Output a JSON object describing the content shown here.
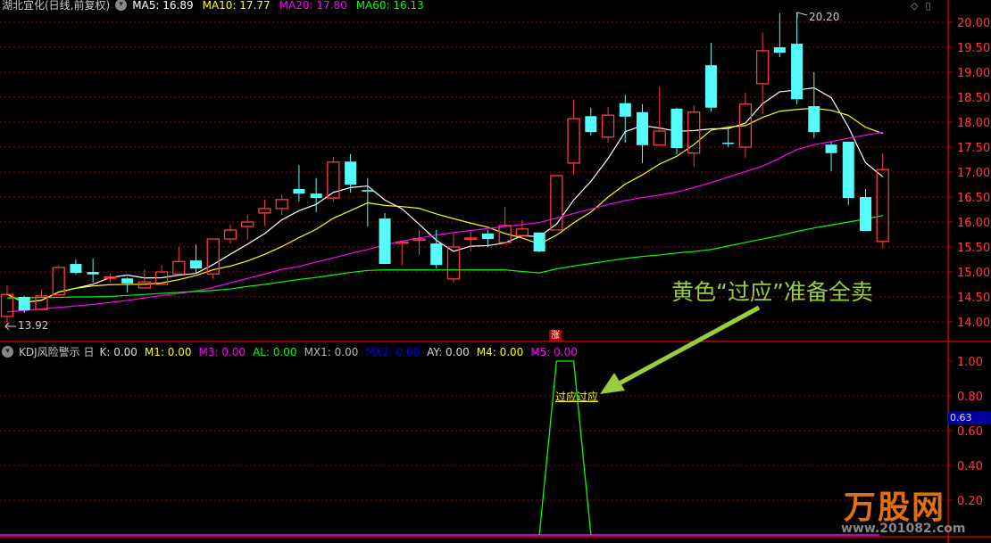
{
  "header": {
    "title": "湖北宜化(日线,前复权)",
    "dropdown_icon": "chevron-down-circle-icon",
    "ma": [
      {
        "label": "MA5: 16.89",
        "color": "#ffffff"
      },
      {
        "label": "MA10: 17.77",
        "color": "#ffff00"
      },
      {
        "label": "MA20: 17.80",
        "color": "#ff00ff"
      },
      {
        "label": "MA60: 16.13",
        "color": "#00ff00"
      }
    ]
  },
  "indicator_header": {
    "name": "KDJ风险警示 日",
    "values": [
      {
        "label": "K: 0.00",
        "color": "#dddddd"
      },
      {
        "label": "M1: 0.00",
        "color": "#ffff00"
      },
      {
        "label": "M3: 0.00",
        "color": "#ff00ff"
      },
      {
        "label": "AL: 0.00",
        "color": "#00ff00"
      },
      {
        "label": "MX1: 0.00",
        "color": "#bbbbbb"
      },
      {
        "label": "MX2: 0.00",
        "color": "#0000ff"
      },
      {
        "label": "AY: 0.00",
        "color": "#dddddd"
      },
      {
        "label": "M4: 0.00",
        "color": "#ffff00"
      },
      {
        "label": "M5: 0.00",
        "color": "#ff00ff"
      }
    ]
  },
  "annotation": "黄色“过应”准备全卖",
  "signal_label": "过应过应",
  "indicator_value_box": "0.63",
  "limit_up_badge": "涨",
  "logo": {
    "text": "万股网",
    "url": "www.201082.com"
  },
  "top_icons": [
    "diamond-icon",
    "panel-toggle-icon"
  ],
  "colors": {
    "up": "#ff3c3c",
    "down": "#54fcfc",
    "grid": "#a00000",
    "axis": "#c00000",
    "arrow": "#9acd3c"
  },
  "chart_data": [
    {
      "type": "candlestick",
      "title": "",
      "ylim": [
        13.8,
        20.4
      ],
      "yticks": [
        "20.00",
        "19.50",
        "19.00",
        "18.50",
        "18.00",
        "17.50",
        "17.00",
        "16.50",
        "16.00",
        "15.50",
        "15.00",
        "14.50",
        "14.00"
      ],
      "high_label": "20.20",
      "low_label": "13.92",
      "ohlc": [
        [
          14.11,
          14.73,
          13.92,
          14.55
        ],
        [
          14.5,
          14.52,
          14.18,
          14.23
        ],
        [
          14.25,
          14.64,
          14.25,
          14.52
        ],
        [
          14.54,
          15.14,
          14.54,
          15.09
        ],
        [
          15.16,
          15.25,
          14.95,
          14.98
        ],
        [
          15.0,
          15.27,
          14.79,
          14.95
        ],
        [
          14.88,
          14.96,
          14.79,
          14.9
        ],
        [
          14.87,
          14.89,
          14.59,
          14.77
        ],
        [
          14.68,
          15.05,
          14.68,
          14.8
        ],
        [
          14.75,
          15.14,
          14.75,
          15.0
        ],
        [
          14.96,
          15.5,
          14.96,
          15.21
        ],
        [
          15.23,
          15.55,
          14.96,
          15.07
        ],
        [
          14.96,
          15.66,
          14.86,
          15.66
        ],
        [
          15.66,
          15.95,
          15.57,
          15.84
        ],
        [
          15.91,
          16.14,
          15.64,
          16.0
        ],
        [
          16.18,
          16.45,
          15.93,
          16.27
        ],
        [
          16.27,
          16.55,
          16.14,
          16.45
        ],
        [
          16.66,
          17.14,
          16.41,
          16.57
        ],
        [
          16.57,
          16.88,
          16.2,
          16.48
        ],
        [
          16.48,
          17.3,
          16.41,
          17.2
        ],
        [
          17.21,
          17.36,
          16.59,
          16.75
        ],
        [
          16.64,
          16.88,
          15.91,
          16.61
        ],
        [
          16.07,
          16.18,
          15.16,
          15.16
        ],
        [
          15.59,
          15.6,
          15.14,
          15.6
        ],
        [
          15.65,
          15.84,
          15.34,
          15.66
        ],
        [
          15.57,
          15.84,
          15.07,
          15.14
        ],
        [
          14.86,
          15.77,
          14.79,
          15.5
        ],
        [
          15.67,
          15.8,
          15.41,
          15.68
        ],
        [
          15.77,
          15.84,
          15.5,
          15.66
        ],
        [
          15.59,
          16.3,
          15.59,
          15.93
        ],
        [
          15.73,
          16.04,
          15.68,
          15.86
        ],
        [
          15.79,
          15.79,
          15.39,
          15.41
        ],
        [
          15.84,
          16.93,
          15.84,
          16.93
        ],
        [
          17.18,
          18.45,
          16.95,
          18.07
        ],
        [
          18.12,
          18.29,
          17.73,
          17.8
        ],
        [
          17.7,
          18.3,
          17.59,
          18.14
        ],
        [
          18.38,
          18.55,
          17.59,
          18.11
        ],
        [
          18.2,
          18.36,
          17.18,
          17.54
        ],
        [
          17.54,
          18.71,
          17.54,
          17.82
        ],
        [
          18.27,
          18.29,
          17.36,
          17.48
        ],
        [
          17.38,
          18.34,
          17.11,
          18.2
        ],
        [
          19.14,
          19.59,
          18.21,
          18.29
        ],
        [
          17.59,
          17.91,
          17.5,
          17.57
        ],
        [
          17.5,
          18.59,
          17.29,
          18.36
        ],
        [
          18.77,
          19.79,
          18.16,
          19.43
        ],
        [
          19.5,
          20.18,
          19.3,
          19.39
        ],
        [
          19.57,
          20.2,
          18.36,
          18.46
        ],
        [
          18.32,
          19.0,
          17.68,
          17.8
        ],
        [
          17.55,
          17.61,
          17.02,
          17.38
        ],
        [
          17.61,
          17.61,
          16.34,
          16.48
        ],
        [
          16.5,
          16.66,
          15.82,
          15.82
        ],
        [
          15.61,
          17.38,
          15.48,
          17.05
        ]
      ],
      "ma20": [
        14.2,
        14.23,
        14.26,
        14.29,
        14.32,
        14.35,
        14.39,
        14.43,
        14.48,
        14.53,
        14.57,
        14.62,
        14.69,
        14.78,
        14.87,
        14.96,
        15.05,
        15.11,
        15.2,
        15.28,
        15.37,
        15.45,
        15.54,
        15.62,
        15.68,
        15.74,
        15.79,
        15.83,
        15.87,
        15.91,
        15.95,
        15.99,
        16.08,
        16.17,
        16.26,
        16.35,
        16.43,
        16.49,
        16.54,
        16.6,
        16.69,
        16.79,
        16.9,
        17.01,
        17.12,
        17.28,
        17.45,
        17.55,
        17.61,
        17.68,
        17.74,
        17.8
      ],
      "ma60": [
        14.48,
        14.48,
        14.49,
        14.49,
        14.5,
        14.5,
        14.51,
        14.53,
        14.55,
        14.57,
        14.59,
        14.61,
        14.63,
        14.66,
        14.71,
        14.75,
        14.8,
        14.85,
        14.89,
        14.94,
        14.99,
        15.03,
        15.04,
        15.04,
        15.04,
        15.04,
        15.04,
        15.04,
        15.04,
        15.04,
        15.01,
        14.98,
        15.06,
        15.12,
        15.17,
        15.22,
        15.27,
        15.31,
        15.34,
        15.38,
        15.41,
        15.45,
        15.52,
        15.59,
        15.66,
        15.73,
        15.81,
        15.88,
        15.94,
        16.0,
        16.06,
        16.13
      ]
    },
    {
      "type": "line",
      "title": "",
      "ylim": [
        0,
        1.05
      ],
      "yticks": [
        "1.00",
        "0.80",
        "0.60",
        "0.40",
        "0.20"
      ],
      "signal": [
        0,
        0,
        0,
        0,
        0,
        0,
        0,
        0,
        0,
        0,
        0,
        0,
        0,
        0,
        0,
        0,
        0,
        0,
        0,
        0,
        0,
        0,
        0,
        0,
        0,
        0,
        0,
        0,
        0,
        0,
        0,
        0,
        1,
        1,
        0,
        0,
        0,
        0,
        0,
        0,
        0,
        0,
        0,
        0,
        0,
        0,
        0,
        0,
        0,
        0,
        0,
        0
      ],
      "zero_line": 0
    }
  ]
}
